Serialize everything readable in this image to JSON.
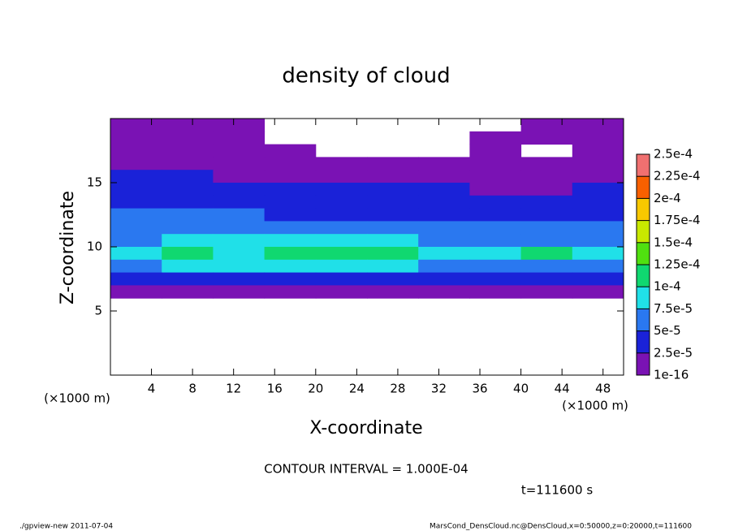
{
  "chart_data": {
    "type": "contour",
    "title": "density of cloud",
    "x_label": "X-coordinate",
    "y_label": "Z-coordinate",
    "x_unit": "(×1000 m)",
    "y_unit": "(×1000 m)",
    "xlim": [
      0,
      50
    ],
    "ylim": [
      0,
      20
    ],
    "xticks": [
      4,
      8,
      12,
      16,
      20,
      24,
      28,
      32,
      36,
      40,
      44,
      48
    ],
    "yticks": [
      5,
      10,
      15
    ],
    "x": [
      2.5,
      7.5,
      12.5,
      17.5,
      22.5,
      27.5,
      32.5,
      37.5,
      42.5,
      47.5
    ],
    "y": [
      19.5,
      18.5,
      17.5,
      16.5,
      15.5,
      14.5,
      13.5,
      12.5,
      11.5,
      10.5,
      9.5,
      8.5,
      7.5,
      6.5
    ],
    "z": [
      [
        1e-05,
        1e-05,
        5e-06,
        null,
        null,
        null,
        null,
        null,
        1e-05,
        1e-05
      ],
      [
        1e-05,
        1e-05,
        5e-06,
        null,
        null,
        null,
        null,
        5e-06,
        5e-06,
        1e-05
      ],
      [
        1.5e-05,
        1e-05,
        1e-05,
        5e-06,
        null,
        null,
        null,
        5e-06,
        null,
        1e-05
      ],
      [
        2e-05,
        1.5e-05,
        1e-05,
        1e-05,
        5e-06,
        5e-06,
        1e-05,
        1e-05,
        1e-05,
        1.5e-05
      ],
      [
        3e-05,
        3e-05,
        2e-05,
        2e-05,
        1.5e-05,
        1.5e-05,
        1.5e-05,
        1e-05,
        1.5e-05,
        2e-05
      ],
      [
        4e-05,
        4e-05,
        3e-05,
        3e-05,
        3e-05,
        3e-05,
        2.5e-05,
        1.5e-05,
        2e-05,
        3e-05
      ],
      [
        4e-05,
        4e-05,
        4e-05,
        4e-05,
        4e-05,
        4e-05,
        3e-05,
        3e-05,
        3e-05,
        4e-05
      ],
      [
        5e-05,
        5e-05,
        5e-05,
        4.5e-05,
        4e-05,
        4e-05,
        4e-05,
        4e-05,
        4e-05,
        4e-05
      ],
      [
        6e-05,
        6e-05,
        6e-05,
        5e-05,
        5e-05,
        5e-05,
        5e-05,
        5e-05,
        5e-05,
        5e-05
      ],
      [
        7e-05,
        8e-05,
        8e-05,
        8e-05,
        9e-05,
        9e-05,
        7e-05,
        6e-05,
        7e-05,
        7e-05
      ],
      [
        9e-05,
        0.00011,
        9e-05,
        0.0001,
        0.00011,
        0.00011,
        8e-05,
        9e-05,
        0.0001,
        9e-05
      ],
      [
        7e-05,
        8e-05,
        8e-05,
        8e-05,
        9e-05,
        8e-05,
        7e-05,
        7e-05,
        7e-05,
        7e-05
      ],
      [
        3e-05,
        4e-05,
        4e-05,
        4e-05,
        4e-05,
        4e-05,
        4e-05,
        4e-05,
        4e-05,
        3e-05
      ],
      [
        1e-05,
        1e-05,
        1e-05,
        1e-05,
        1e-05,
        1e-05,
        1e-05,
        1e-05,
        1e-05,
        1e-05
      ]
    ],
    "colorbar": {
      "levels": [
        {
          "value": 1e-16,
          "label": "1e-16"
        },
        {
          "value": 2.5e-05,
          "label": "2.5e-5"
        },
        {
          "value": 5e-05,
          "label": "5e-5"
        },
        {
          "value": 7.5e-05,
          "label": "7.5e-5"
        },
        {
          "value": 0.0001,
          "label": "1e-4"
        },
        {
          "value": 0.000125,
          "label": "1.25e-4"
        },
        {
          "value": 0.00015,
          "label": "1.5e-4"
        },
        {
          "value": 0.000175,
          "label": "1.75e-4"
        },
        {
          "value": 0.0002,
          "label": "2e-4"
        },
        {
          "value": 0.000225,
          "label": "2.25e-4"
        },
        {
          "value": 0.00025,
          "label": "2.5e-4"
        }
      ],
      "colors": [
        "#7a12b4",
        "#1a22d8",
        "#2a78f0",
        "#20e0e8",
        "#10d870",
        "#50e010",
        "#c8e800",
        "#f8c800",
        "#f86000",
        "#f07070"
      ]
    },
    "contour_interval": "CONTOUR INTERVAL = 1.000E-04",
    "time": "t=111600 s",
    "footer_left": "./gpview-new  2011-07-04",
    "footer_right": "MarsCond_DensCloud.nc@DensCloud,x=0:50000,z=0:20000,t=111600"
  }
}
